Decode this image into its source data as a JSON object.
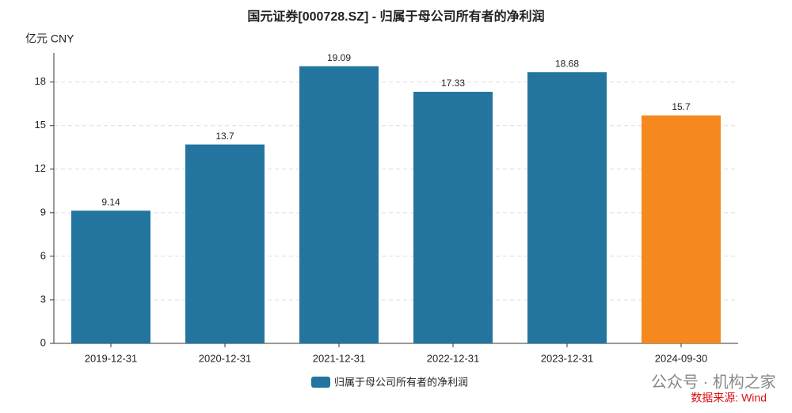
{
  "chart_data": {
    "type": "bar",
    "title": "国元证券[000728.SZ] - 归属于母公司所有者的净利润",
    "y_label": "亿元  CNY",
    "categories": [
      "2019-12-31",
      "2020-12-31",
      "2021-12-31",
      "2022-12-31",
      "2023-12-31",
      "2024-09-30"
    ],
    "series": [
      {
        "name": "归属于母公司所有者的净利润",
        "color": "#23759f",
        "colors": [
          "#23759f",
          "#23759f",
          "#23759f",
          "#23759f",
          "#23759f",
          "#f5891e"
        ],
        "values": [
          9.14,
          13.7,
          19.09,
          17.33,
          18.68,
          15.7
        ]
      }
    ],
    "ylim": [
      0,
      20
    ],
    "yticks": [
      0,
      3,
      6,
      9,
      12,
      15,
      18
    ],
    "grid": true,
    "legend": "bottom",
    "watermark": "公众号 · 机构之家",
    "source": "数据来源: Wind"
  }
}
